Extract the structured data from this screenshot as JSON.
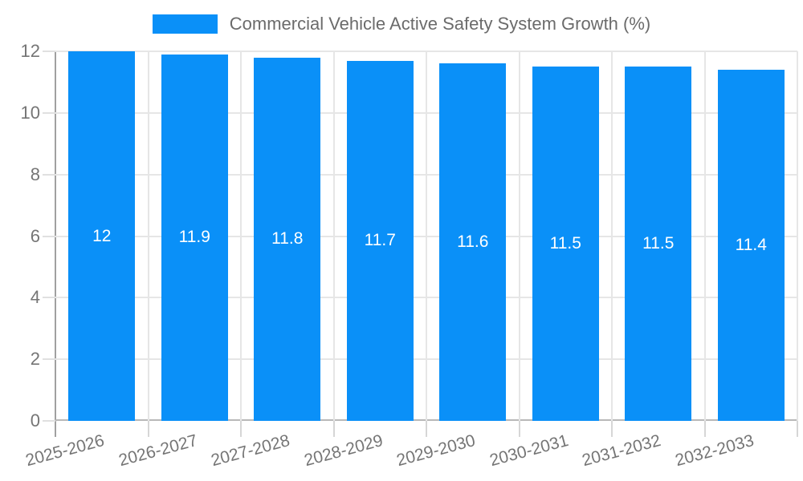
{
  "chart_data": {
    "type": "bar",
    "title": "Commercial Vehicle Active Safety System Growth (%)",
    "categories": [
      "2025-2026",
      "2026-2027",
      "2027-2028",
      "2028-2029",
      "2029-2030",
      "2030-2031",
      "2031-2032",
      "2032-2033"
    ],
    "values": [
      12,
      11.9,
      11.8,
      11.7,
      11.6,
      11.5,
      11.5,
      11.4
    ],
    "value_labels": [
      "12",
      "11.9",
      "11.8",
      "11.7",
      "11.6",
      "11.5",
      "11.5",
      "11.4"
    ],
    "y_tick_labels": [
      "0",
      "2",
      "4",
      "6",
      "8",
      "10",
      "12"
    ],
    "xlabel": "",
    "ylabel": "",
    "ylim": [
      0,
      12
    ],
    "ytick_step": 2,
    "grid": true,
    "legend_position": "top",
    "bar_color": "#0a90f8",
    "bar_label_color": "#ffffff",
    "axis_text_color": "#757575",
    "gridline_color": "#e6e6e6"
  }
}
